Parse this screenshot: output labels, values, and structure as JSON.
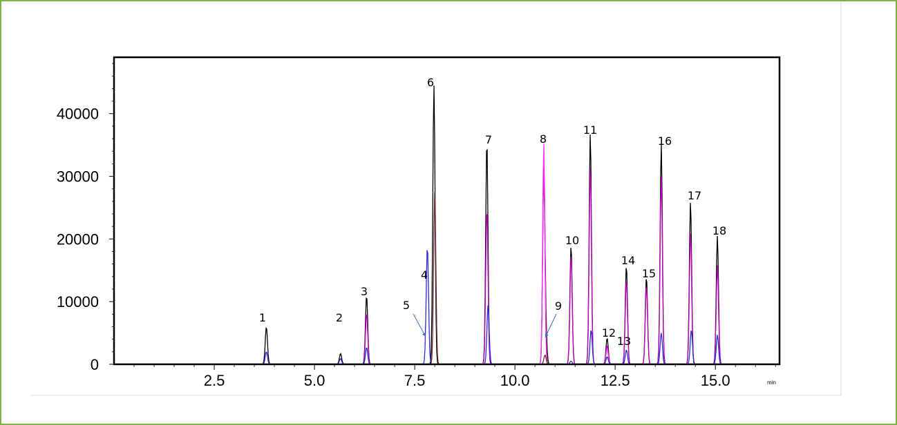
{
  "chart_data": {
    "type": "line",
    "title": "",
    "xlabel": "",
    "ylabel": "",
    "x_unit": "min",
    "xlim": [
      0,
      16.6
    ],
    "ylim": [
      0,
      49000
    ],
    "x_ticks": [
      2.5,
      5.0,
      7.5,
      10.0,
      12.5,
      15.0
    ],
    "x_tick_labels": [
      "2.5",
      "5.0",
      "7.5",
      "10.0",
      "12.5",
      "15.0"
    ],
    "y_ticks": [
      0,
      10000,
      20000,
      30000,
      40000
    ],
    "y_tick_labels": [
      "0",
      "10000",
      "20000",
      "30000",
      "40000"
    ],
    "grid": false,
    "legend": "none",
    "colors": {
      "frame_border": "#7cb342",
      "trace_1": "#000000",
      "trace_2": "#c000c0",
      "trace_3": "#ff33ff",
      "trace_4": "#2b2bd6",
      "trace_5": "#6b2b2b",
      "annotation_arrow": "#3a6fc4"
    },
    "peaks": [
      {
        "label": "1",
        "x": 3.8
      },
      {
        "label": "2",
        "x": 5.65
      },
      {
        "label": "3",
        "x": 6.3
      },
      {
        "label": "4",
        "x": 7.82
      },
      {
        "label": "5",
        "x": 7.77
      },
      {
        "label": "6",
        "x": 7.98
      },
      {
        "label": "7",
        "x": 9.3
      },
      {
        "label": "8",
        "x": 10.72
      },
      {
        "label": "9",
        "x": 10.75
      },
      {
        "label": "10",
        "x": 11.4
      },
      {
        "label": "11",
        "x": 11.88
      },
      {
        "label": "12",
        "x": 12.3
      },
      {
        "label": "13",
        "x": 12.75
      },
      {
        "label": "14",
        "x": 12.8
      },
      {
        "label": "15",
        "x": 13.28
      },
      {
        "label": "16",
        "x": 13.65
      },
      {
        "label": "17",
        "x": 14.38
      },
      {
        "label": "18",
        "x": 15.05
      }
    ],
    "series": [
      {
        "color": "#000000",
        "peaks": [
          [
            3.8,
            6000
          ],
          [
            5.65,
            1700
          ],
          [
            6.3,
            11000
          ],
          [
            7.98,
            44500
          ],
          [
            9.3,
            35800
          ],
          [
            10.72,
            31000
          ],
          [
            10.77,
            4500
          ],
          [
            11.4,
            19000
          ],
          [
            11.88,
            36900
          ],
          [
            12.3,
            4200
          ],
          [
            12.78,
            15800
          ],
          [
            13.28,
            14000
          ],
          [
            13.65,
            35200
          ],
          [
            14.38,
            26000
          ],
          [
            15.05,
            20500
          ]
        ]
      },
      {
        "color": "#c000c0",
        "peaks": [
          [
            6.3,
            8200
          ],
          [
            9.3,
            25000
          ],
          [
            10.72,
            30800
          ],
          [
            11.4,
            17500
          ],
          [
            11.88,
            31500
          ],
          [
            12.3,
            3000
          ],
          [
            12.78,
            13500
          ],
          [
            13.28,
            12600
          ],
          [
            13.65,
            30000
          ],
          [
            14.38,
            21000
          ],
          [
            15.05,
            15800
          ]
        ]
      },
      {
        "color": "#ff33ff",
        "peaks": [
          [
            10.72,
            35300
          ],
          [
            12.3,
            2500
          ]
        ]
      },
      {
        "color": "#2b2bd6",
        "peaks": [
          [
            3.8,
            2000
          ],
          [
            5.65,
            900
          ],
          [
            6.3,
            2700
          ],
          [
            7.8,
            4300
          ],
          [
            7.82,
            15300
          ],
          [
            9.33,
            9500
          ],
          [
            11.4,
            500
          ],
          [
            11.9,
            5500
          ],
          [
            12.3,
            1200
          ],
          [
            12.78,
            2300
          ],
          [
            13.65,
            5000
          ],
          [
            14.4,
            5500
          ],
          [
            15.05,
            4700
          ]
        ]
      },
      {
        "color": "#6b2b2b",
        "peaks": [
          [
            8.0,
            27500
          ],
          [
            10.75,
            1500
          ]
        ]
      }
    ],
    "x_min_label": "min"
  }
}
